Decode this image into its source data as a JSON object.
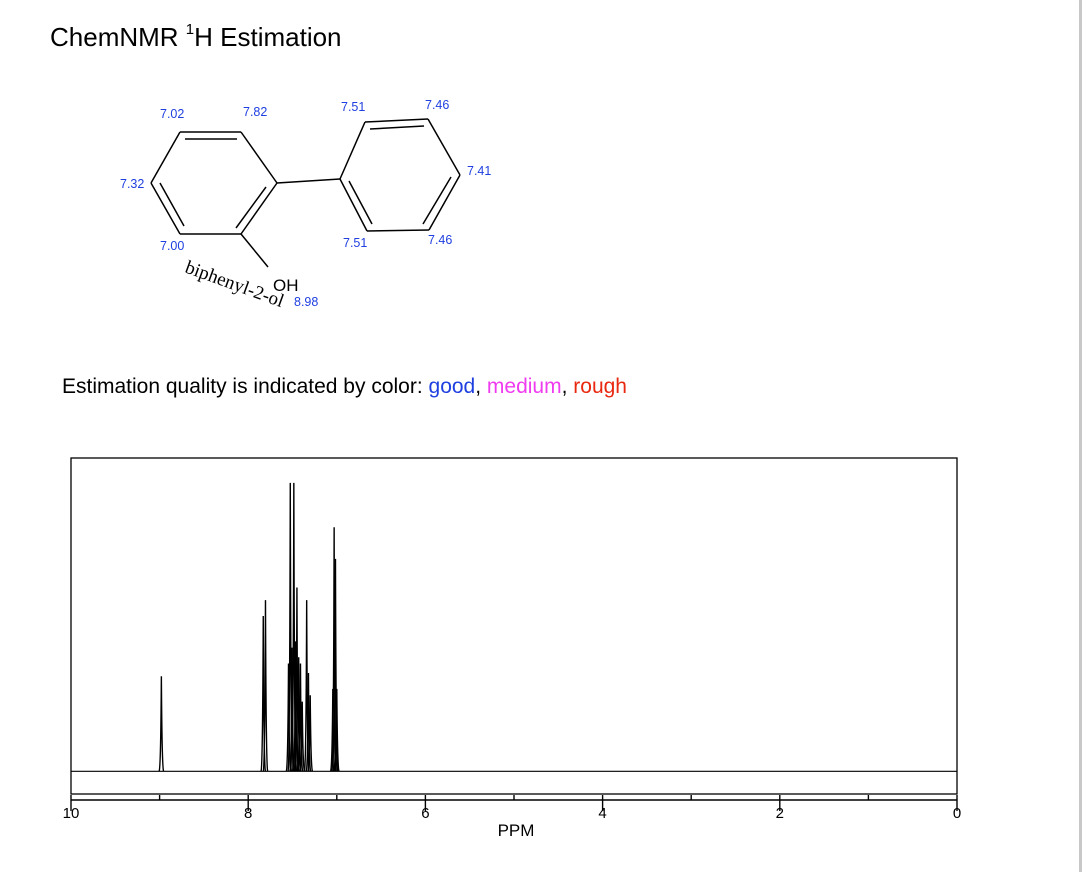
{
  "page": {
    "title_main": "ChemNMR ",
    "title_sup": "1",
    "title_rest": "H Estimation"
  },
  "molecule": {
    "compound_name": "biphenyl-2-ol",
    "hydroxyl_label": "OH",
    "shifts": {
      "h3": "7.02",
      "h6": "7.82",
      "h4": "7.32",
      "h2": "7.00",
      "oh": "8.98",
      "ho": "7.51",
      "hm": "7.46",
      "hp": "7.41",
      "ho2": "7.51",
      "hm2": "7.46"
    }
  },
  "quality": {
    "prefix": "Estimation quality is indicated by color: ",
    "good": "good",
    "sep1": ", ",
    "medium": "medium",
    "sep2": ", ",
    "rough": "rough",
    "colors": {
      "good": "#1f3fe0",
      "medium": "#f03cf0",
      "rough": "#e8280f"
    }
  },
  "chart_data": {
    "type": "line",
    "xlabel": "PPM",
    "ylabel": "",
    "xlim": [
      10,
      0
    ],
    "x_reversed": true,
    "tick_labels": [
      "10",
      "8",
      "6",
      "4",
      "2",
      "0"
    ],
    "tick_values": [
      10,
      8,
      6,
      4,
      2,
      0
    ],
    "minor_ticks": [
      9,
      7,
      5,
      3,
      1
    ],
    "ylim": [
      0,
      1
    ],
    "baseline": 0.04,
    "grid": false,
    "legend": "none",
    "peaks": [
      {
        "ppm": 8.98,
        "height": 0.34
      },
      {
        "ppm": 7.83,
        "height": 0.53
      },
      {
        "ppm": 7.805,
        "height": 0.58
      },
      {
        "ppm": 7.545,
        "height": 0.38
      },
      {
        "ppm": 7.525,
        "height": 0.95
      },
      {
        "ppm": 7.505,
        "height": 0.43
      },
      {
        "ppm": 7.485,
        "height": 0.95
      },
      {
        "ppm": 7.465,
        "height": 0.45
      },
      {
        "ppm": 7.45,
        "height": 0.62
      },
      {
        "ppm": 7.43,
        "height": 0.4
      },
      {
        "ppm": 7.41,
        "height": 0.38
      },
      {
        "ppm": 7.39,
        "height": 0.26
      },
      {
        "ppm": 7.34,
        "height": 0.58
      },
      {
        "ppm": 7.32,
        "height": 0.35
      },
      {
        "ppm": 7.3,
        "height": 0.28
      },
      {
        "ppm": 7.045,
        "height": 0.3
      },
      {
        "ppm": 7.03,
        "height": 0.81
      },
      {
        "ppm": 7.015,
        "height": 0.71
      },
      {
        "ppm": 7.0,
        "height": 0.3
      }
    ]
  }
}
